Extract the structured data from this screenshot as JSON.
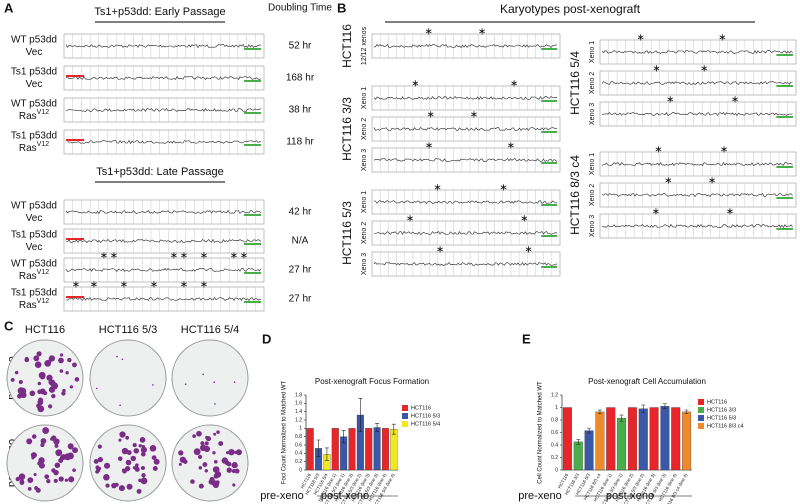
{
  "panel_labels": [
    "A",
    "B",
    "C",
    "D",
    "E"
  ],
  "panel_a": {
    "early_title": "Ts1+p53dd: Early Passage",
    "doubling_title": "Doubling Time",
    "late_title": "Ts1+p53dd: Late Passage",
    "early_rows": [
      {
        "line1": "WT p53dd",
        "line2": "Vec",
        "time": "52 hr"
      },
      {
        "line1": "Ts1 p53dd",
        "line2": "Vec",
        "time": "168 hr"
      },
      {
        "line1": "WT p53dd",
        "line2": "Ras",
        "sup": "V12",
        "time": "38 hr"
      },
      {
        "line1": "Ts1 p53dd",
        "line2": "Ras",
        "sup": "V12",
        "time": "118 hr"
      }
    ],
    "late_rows": [
      {
        "line1": "WT p53dd",
        "line2": "Vec",
        "time": "42 hr"
      },
      {
        "line1": "Ts1 p53dd",
        "line2": "Vec",
        "time": "N/A"
      },
      {
        "line1": "WT p53dd",
        "line2": "Ras",
        "sup": "V12",
        "time": "27 hr"
      },
      {
        "line1": "Ts1 p53dd",
        "line2": "Ras",
        "sup": "V12",
        "time": "27 hr"
      }
    ]
  },
  "panel_b": {
    "title": "Karyotypes post-xenograft",
    "groups": [
      {
        "name": "HCT116",
        "tracks": [
          "12/12 xenos"
        ]
      },
      {
        "name": "HCT116 3/3",
        "tracks": [
          "Xeno 1",
          "Xeno 2",
          "Xeno 3"
        ]
      },
      {
        "name": "HCT116 5/3",
        "tracks": [
          "Xeno 1",
          "Xeno 2",
          "Xeno 3"
        ]
      },
      {
        "name": "HCT116 5/4",
        "tracks": [
          "Xeno 1",
          "Xeno 2",
          "Xeno 3"
        ]
      },
      {
        "name": "HCT116 8/3 c4",
        "tracks": [
          "Xeno 1",
          "Xeno 2",
          "Xeno 3"
        ]
      }
    ]
  },
  "panel_c": {
    "columns": [
      "HCT116",
      "HCT116 5/3",
      "HCT116 5/4"
    ],
    "rows": [
      "pre-xeno",
      "post-xeno"
    ]
  },
  "chart_data": [
    {
      "type": "bar",
      "title": "Post-xenograft Focus Formation",
      "y_label": "Foci Count Normalized to Matched WT",
      "categories": [
        "HCT116",
        "HCT116 5/3",
        "HCT116 5/4",
        "HCT116 (line 1)",
        "HCT116 5/3 (line 1)",
        "HCT116 (line 2)",
        "HCT116 5/3 (line 2)",
        "HCT116 (line 3)",
        "HCT116 5/3 (line 3)",
        "HCT116 (line 4)",
        "HCT116 5/4 (line 4)"
      ],
      "series": [
        {
          "name": "HCT116",
          "color": "#e8262a",
          "values": [
            1,
            null,
            null,
            1,
            null,
            1,
            null,
            1,
            null,
            1,
            null
          ],
          "errors": [
            0,
            null,
            null,
            0,
            null,
            0,
            null,
            0,
            null,
            0,
            null
          ]
        },
        {
          "name": "HCT116 5/3",
          "color": "#3b57a7",
          "values": [
            null,
            0.52,
            null,
            null,
            0.8,
            null,
            1.32,
            null,
            1.02,
            null,
            null
          ],
          "errors": [
            null,
            0.2,
            null,
            null,
            0.15,
            null,
            0.4,
            null,
            0.1,
            null,
            null
          ]
        },
        {
          "name": "HCT116 5/4",
          "color": "#f2e821",
          "values": [
            null,
            null,
            0.38,
            null,
            null,
            null,
            null,
            null,
            null,
            null,
            0.98
          ],
          "errors": [
            null,
            null,
            0.15,
            null,
            null,
            null,
            null,
            null,
            null,
            null,
            0.12
          ]
        }
      ],
      "ylim": [
        0,
        1.8
      ],
      "yticks": [
        0,
        0.2,
        0.4,
        0.6,
        0.8,
        1,
        1.2,
        1.4,
        1.6,
        1.8
      ],
      "group_labels": [
        "pre-xeno",
        "post-xeno"
      ]
    },
    {
      "type": "bar",
      "title": "Post-xenograft Cell Accumulation",
      "y_label": "Cell Count Normalized to Matched WT",
      "categories": [
        "HCT116",
        "HCT116 3/3",
        "HCT116 5/3",
        "HCT116 8/3 c4",
        "HCT116 (line 1)",
        "HCT116 3/3 (line 1)",
        "HCT116 (line 2)",
        "HCT116 5/3 (line 2)",
        "HCT116 (line 3)",
        "HCT116 5/3 (line 3)",
        "HCT116 (line 4)",
        "HCT116 8/3 c4 (line 4)"
      ],
      "series": [
        {
          "name": "HCT116",
          "color": "#e8262a",
          "values": [
            1,
            null,
            null,
            null,
            1,
            null,
            1,
            null,
            1,
            null,
            1,
            null
          ],
          "errors": [
            0,
            null,
            null,
            null,
            0,
            null,
            0,
            null,
            0,
            null,
            0,
            null
          ]
        },
        {
          "name": "HCT116 3/3",
          "color": "#4aae4a",
          "values": [
            null,
            0.45,
            null,
            null,
            null,
            0.83,
            null,
            null,
            null,
            null,
            null,
            null
          ],
          "errors": [
            null,
            0.04,
            null,
            null,
            null,
            0.05,
            null,
            null,
            null,
            null,
            null,
            null
          ]
        },
        {
          "name": "HCT116 5/3",
          "color": "#3b57a7",
          "values": [
            null,
            null,
            0.63,
            null,
            null,
            null,
            null,
            0.98,
            null,
            1.02,
            null,
            null
          ],
          "errors": [
            null,
            null,
            0.04,
            null,
            null,
            null,
            null,
            0.06,
            null,
            0.04,
            null,
            null
          ]
        },
        {
          "name": "HCT116 8/3 c4",
          "color": "#ef8a2a",
          "values": [
            null,
            null,
            null,
            0.93,
            null,
            null,
            null,
            null,
            null,
            null,
            null,
            0.93
          ],
          "errors": [
            null,
            null,
            null,
            0.03,
            null,
            null,
            null,
            null,
            null,
            null,
            null,
            0.03
          ]
        }
      ],
      "ylim": [
        0,
        1.2
      ],
      "yticks": [
        0,
        0.2,
        0.4,
        0.6,
        0.8,
        1,
        1.2
      ],
      "group_labels": [
        "pre-xeno",
        "post-xeno"
      ]
    }
  ]
}
